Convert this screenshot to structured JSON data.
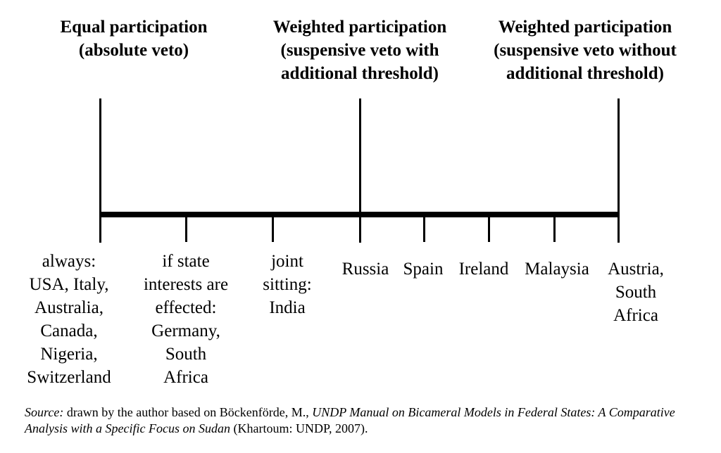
{
  "headings": [
    {
      "lines": [
        "Equal participation",
        "(absolute veto)"
      ]
    },
    {
      "lines": [
        "Weighted participation",
        "(suspensive veto with",
        "additional threshold)"
      ]
    },
    {
      "lines": [
        "Weighted participation",
        "(suspensive veto without",
        "additional threshold)"
      ]
    }
  ],
  "labels": [
    {
      "lines": [
        "always:",
        "USA, Italy,",
        "Australia,",
        "Canada,",
        "Nigeria,",
        "Switzerland"
      ]
    },
    {
      "lines": [
        "if state",
        "interests are",
        "effected:",
        "Germany,",
        "South",
        "Africa"
      ]
    },
    {
      "lines": [
        "joint",
        "sitting:",
        "India"
      ]
    },
    {
      "lines": [
        "Russia"
      ]
    },
    {
      "lines": [
        "Spain"
      ]
    },
    {
      "lines": [
        "Ireland"
      ]
    },
    {
      "lines": [
        "Malaysia"
      ]
    },
    {
      "lines": [
        "Austria,",
        "South",
        "Africa"
      ]
    }
  ],
  "source": {
    "label": "Source:",
    "text1": " drawn by the author based on Böckenförde, M., ",
    "title": "UNDP Manual on Bicameral Models in Federal States: A Comparative Analysis with a Specific Focus on Sudan",
    "text2": " (Khartoum: UNDP, 2007)."
  }
}
